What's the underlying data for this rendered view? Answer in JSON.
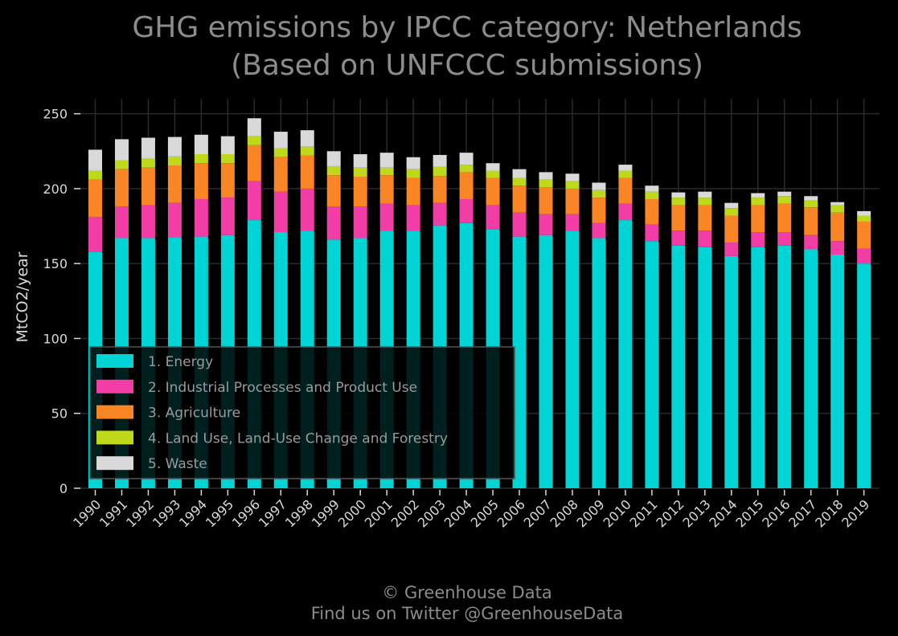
{
  "chart_data": {
    "type": "bar",
    "stacked": true,
    "title": "GHG emissions by IPCC category: Netherlands",
    "subtitle": "(Based on UNFCCC submissions)",
    "xlabel": "",
    "ylabel": "MtCO2/year",
    "ylim": [
      0,
      260
    ],
    "yticks": [
      0,
      50,
      100,
      150,
      200,
      250
    ],
    "grid": true,
    "legend_position": "bottom-left",
    "categories": [
      "1990",
      "1991",
      "1992",
      "1993",
      "1994",
      "1995",
      "1996",
      "1997",
      "1998",
      "1999",
      "2000",
      "2001",
      "2002",
      "2003",
      "2004",
      "2005",
      "2006",
      "2007",
      "2008",
      "2009",
      "2010",
      "2011",
      "2012",
      "2013",
      "2014",
      "2015",
      "2016",
      "2017",
      "2018",
      "2019"
    ],
    "series": [
      {
        "name": "1. Energy",
        "color": "#00d4d4",
        "values": [
          158,
          167,
          167,
          167.5,
          168,
          169,
          179,
          171,
          172,
          166,
          167,
          172,
          172,
          175.5,
          177,
          173,
          168,
          169,
          172,
          167,
          179,
          165,
          162,
          161,
          155,
          161,
          162,
          159.5,
          156,
          150
        ]
      },
      {
        "name": "2. Industrial Processes and Product Use",
        "color": "#f23ca6",
        "values": [
          23,
          21,
          22,
          23,
          25,
          25,
          26,
          27,
          28,
          22,
          21,
          18,
          17,
          15,
          16,
          16,
          16,
          14,
          11,
          10,
          11,
          11,
          10,
          11,
          9,
          10,
          9,
          9.5,
          9,
          10
        ]
      },
      {
        "name": "3. Agriculture",
        "color": "#f98524",
        "values": [
          25,
          25,
          25,
          25,
          24,
          23,
          24,
          23,
          22,
          21,
          20,
          19,
          18,
          18,
          18,
          18,
          18,
          18,
          17,
          17,
          17,
          17,
          17,
          17,
          18,
          18,
          19,
          18.5,
          19,
          18
        ]
      },
      {
        "name": "4. Land Use, Land-Use Change and Forestry",
        "color": "#bfd91a",
        "values": [
          6,
          6,
          6,
          6,
          6,
          6,
          6,
          6,
          6,
          6,
          6,
          5,
          6,
          6,
          5,
          5,
          5,
          5,
          5,
          5,
          5,
          5,
          5,
          5,
          5,
          5,
          5,
          4.5,
          5,
          4
        ]
      },
      {
        "name": "5. Waste",
        "color": "#d9d9d9",
        "values": [
          14,
          14,
          14,
          13,
          13,
          12,
          12,
          11,
          11,
          10,
          9,
          10,
          8,
          8,
          8,
          5,
          6,
          5,
          5,
          5,
          4,
          4,
          3.5,
          4,
          3.5,
          3,
          3,
          3,
          2,
          3
        ]
      }
    ]
  },
  "footer": {
    "line1": "© Greenhouse Data",
    "line2": "Find us on Twitter @GreenhouseData"
  }
}
